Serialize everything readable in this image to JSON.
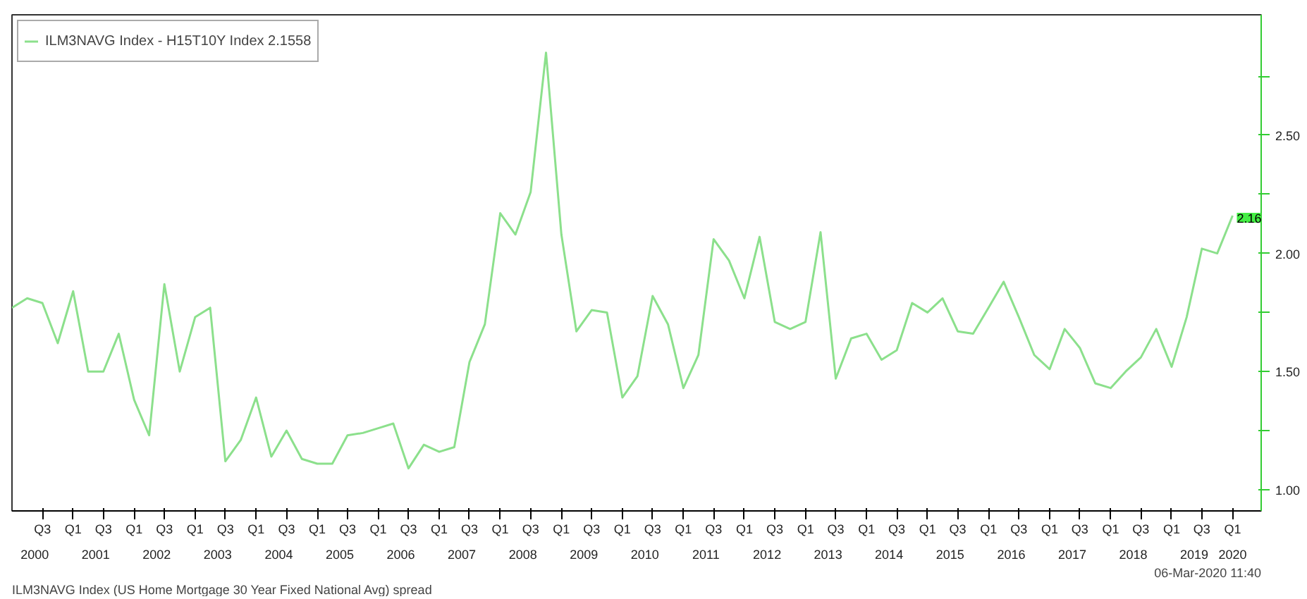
{
  "chart_data": {
    "type": "line",
    "x": [
      "2000-01",
      "2000-04",
      "2000-07",
      "2000-10",
      "2001-01",
      "2001-04",
      "2001-07",
      "2001-10",
      "2002-01",
      "2002-04",
      "2002-07",
      "2002-10",
      "2003-01",
      "2003-04",
      "2003-07",
      "2003-10",
      "2004-01",
      "2004-04",
      "2004-07",
      "2004-10",
      "2005-01",
      "2005-04",
      "2005-07",
      "2005-10",
      "2006-01",
      "2006-04",
      "2006-07",
      "2006-10",
      "2007-01",
      "2007-04",
      "2007-07",
      "2007-10",
      "2008-01",
      "2008-04",
      "2008-07",
      "2008-10",
      "2009-01",
      "2009-04",
      "2009-07",
      "2009-10",
      "2010-01",
      "2010-04",
      "2010-07",
      "2010-10",
      "2011-01",
      "2011-04",
      "2011-07",
      "2011-10",
      "2012-01",
      "2012-04",
      "2012-07",
      "2012-10",
      "2013-01",
      "2013-04",
      "2013-07",
      "2013-10",
      "2014-01",
      "2014-04",
      "2014-07",
      "2014-10",
      "2015-01",
      "2015-04",
      "2015-07",
      "2015-10",
      "2016-01",
      "2016-04",
      "2016-07",
      "2016-10",
      "2017-01",
      "2017-04",
      "2017-07",
      "2017-10",
      "2018-01",
      "2018-04",
      "2018-07",
      "2018-10",
      "2019-01",
      "2019-04",
      "2019-07",
      "2019-10",
      "2020-01"
    ],
    "series": [
      {
        "name": "ILM3NAVG Index - H15T10Y Index 2.1558",
        "color": "#8ce08c",
        "values": [
          1.77,
          1.81,
          1.79,
          1.62,
          1.84,
          1.5,
          1.5,
          1.66,
          1.38,
          1.23,
          1.87,
          1.5,
          1.73,
          1.77,
          1.12,
          1.21,
          1.39,
          1.14,
          1.25,
          1.13,
          1.11,
          1.11,
          1.23,
          1.24,
          1.26,
          1.28,
          1.09,
          1.19,
          1.16,
          1.18,
          1.54,
          1.7,
          2.17,
          2.08,
          2.26,
          2.85,
          2.08,
          1.67,
          1.76,
          1.75,
          1.39,
          1.48,
          1.82,
          1.7,
          1.43,
          1.57,
          2.06,
          1.97,
          1.81,
          2.07,
          1.71,
          1.68,
          1.71,
          2.09,
          1.47,
          1.64,
          1.66,
          1.55,
          1.59,
          1.79,
          1.75,
          1.81,
          1.67,
          1.66,
          1.77,
          1.88,
          1.73,
          1.57,
          1.51,
          1.68,
          1.6,
          1.45,
          1.43,
          1.5,
          1.56,
          1.68,
          1.52,
          1.73,
          2.02,
          2.0,
          2.16
        ]
      }
    ],
    "xlim": [
      "2000-01",
      "2020-06-20"
    ],
    "xticks": [
      {
        "value": "2000-05-16",
        "label": "2000"
      },
      {
        "value": "2001-05-16",
        "label": "2001"
      },
      {
        "value": "2002-05-16",
        "label": "2002"
      },
      {
        "value": "2003-05-16",
        "label": "2003"
      },
      {
        "value": "2004-05-16",
        "label": "2004"
      },
      {
        "value": "2005-05-16",
        "label": "2005"
      },
      {
        "value": "2006-05-16",
        "label": "2006"
      },
      {
        "value": "2007-05-16",
        "label": "2007"
      },
      {
        "value": "2008-05-16",
        "label": "2008"
      },
      {
        "value": "2009-05-16",
        "label": "2009"
      },
      {
        "value": "2010-05-16",
        "label": "2010"
      },
      {
        "value": "2011-05-16",
        "label": "2011"
      },
      {
        "value": "2012-05-16",
        "label": "2012"
      },
      {
        "value": "2013-05-16",
        "label": "2013"
      },
      {
        "value": "2014-05-16",
        "label": "2014"
      },
      {
        "value": "2015-05-16",
        "label": "2015"
      },
      {
        "value": "2016-05-16",
        "label": "2016"
      },
      {
        "value": "2017-05-16",
        "label": "2017"
      },
      {
        "value": "2018-05-16",
        "label": "2018"
      },
      {
        "value": "2019-05-16",
        "label": "2019"
      },
      {
        "value": "2020-01",
        "label": "2020"
      }
    ],
    "x2lim": [
      "2000-01",
      "2020-06-20"
    ],
    "x2ticks": [
      {
        "value": "2000-07",
        "label": "Q3"
      },
      {
        "value": "2001-01",
        "label": "Q1"
      },
      {
        "value": "2001-07",
        "label": "Q3"
      },
      {
        "value": "2002-01",
        "label": "Q1"
      },
      {
        "value": "2002-07",
        "label": "Q3"
      },
      {
        "value": "2003-01",
        "label": "Q1"
      },
      {
        "value": "2003-07",
        "label": "Q3"
      },
      {
        "value": "2004-01",
        "label": "Q1"
      },
      {
        "value": "2004-07",
        "label": "Q3"
      },
      {
        "value": "2005-01",
        "label": "Q1"
      },
      {
        "value": "2005-07",
        "label": "Q3"
      },
      {
        "value": "2006-01",
        "label": "Q1"
      },
      {
        "value": "2006-07",
        "label": "Q3"
      },
      {
        "value": "2007-01",
        "label": "Q1"
      },
      {
        "value": "2007-07",
        "label": "Q3"
      },
      {
        "value": "2008-01",
        "label": "Q1"
      },
      {
        "value": "2008-07",
        "label": "Q3"
      },
      {
        "value": "2009-01",
        "label": "Q1"
      },
      {
        "value": "2009-07",
        "label": "Q3"
      },
      {
        "value": "2010-01",
        "label": "Q1"
      },
      {
        "value": "2010-07",
        "label": "Q3"
      },
      {
        "value": "2011-01",
        "label": "Q1"
      },
      {
        "value": "2011-07",
        "label": "Q3"
      },
      {
        "value": "2012-01",
        "label": "Q1"
      },
      {
        "value": "2012-07",
        "label": "Q3"
      },
      {
        "value": "2013-01",
        "label": "Q1"
      },
      {
        "value": "2013-07",
        "label": "Q3"
      },
      {
        "value": "2014-01",
        "label": "Q1"
      },
      {
        "value": "2014-07",
        "label": "Q3"
      },
      {
        "value": "2015-01",
        "label": "Q1"
      },
      {
        "value": "2015-07",
        "label": "Q3"
      },
      {
        "value": "2016-01",
        "label": "Q1"
      },
      {
        "value": "2016-07",
        "label": "Q3"
      },
      {
        "value": "2017-01",
        "label": "Q1"
      },
      {
        "value": "2017-07",
        "label": "Q3"
      },
      {
        "value": "2018-01",
        "label": "Q1"
      },
      {
        "value": "2018-07",
        "label": "Q3"
      },
      {
        "value": "2019-01",
        "label": "Q1"
      },
      {
        "value": "2019-07",
        "label": "Q3"
      },
      {
        "value": "2020-01",
        "label": "Q1"
      }
    ],
    "ylim": [
      0.91,
      3.01
    ],
    "yticks": [
      {
        "value": 1.0,
        "label": "1.00"
      },
      {
        "value": 1.25,
        "label": null
      },
      {
        "value": 1.5,
        "label": "1.50"
      },
      {
        "value": 1.75,
        "label": null
      },
      {
        "value": 2.0,
        "label": "2.00"
      },
      {
        "value": 2.25,
        "label": null
      },
      {
        "value": 2.5,
        "label": "2.50"
      },
      {
        "value": 2.75,
        "label": null
      }
    ],
    "annotations": [
      {
        "text": "2.16",
        "x": "2020-01",
        "y": 2.16
      },
      "ILM3NAVG Index (US Home Mortgage 30 Year Fixed National Avg) spread",
      "06-Mar-2020 11:40"
    ],
    "grid": false,
    "legend": "top left",
    "marker": "none",
    "line_style": "solid"
  }
}
